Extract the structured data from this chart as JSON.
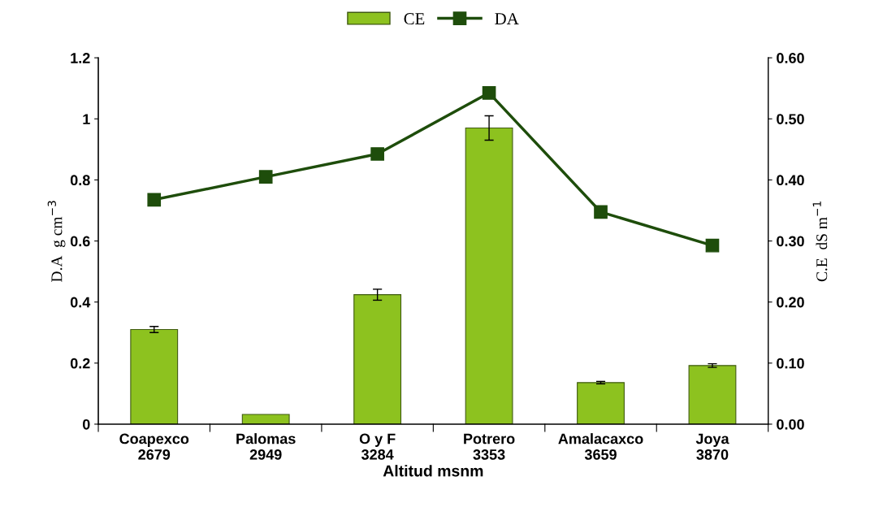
{
  "chart_data": {
    "type": "bar",
    "xlabel": "Altitud msnm",
    "ylabel": "D.A  g cm$^{−3}$",
    "y2label": "C.E  dS m$^{−1}$",
    "categories": [
      "Coapexco\n2679",
      "Palomas\n2949",
      "O y F\n3284",
      "Potrero\n3353",
      "Amalacaxco\n3659",
      "Joya\n3870"
    ],
    "series": [
      {
        "name": "CE",
        "axis": "y2",
        "color": "#8dc21f",
        "values": [
          0.155,
          0.016,
          0.212,
          0.485,
          0.068,
          0.096
        ],
        "errors": [
          0.005,
          null,
          0.009,
          0.02,
          0.002,
          0.003
        ]
      },
      {
        "name": "DA",
        "type": "line",
        "axis": "y",
        "color": "#1e4d0b",
        "values": [
          0.735,
          0.81,
          0.885,
          1.085,
          0.695,
          0.585
        ]
      }
    ],
    "ylim": [
      0,
      1.2
    ],
    "yticks": [
      0,
      0.2,
      0.4,
      0.6,
      0.8,
      1,
      1.2
    ],
    "y2lim": [
      0,
      0.6
    ],
    "y2ticks": [
      {
        "value": 0,
        "label": "0.00"
      },
      {
        "value": 0.1,
        "label": "0.10"
      },
      {
        "value": 0.2,
        "label": "0.20"
      },
      {
        "value": 0.3,
        "label": "0.30"
      },
      {
        "value": 0.4,
        "label": "0.40"
      },
      {
        "value": 0.5,
        "label": "0.50"
      },
      {
        "value": 0.6,
        "label": "0.60"
      }
    ],
    "marker": "square",
    "line_style": "solid",
    "grid": false,
    "legend": "top"
  }
}
